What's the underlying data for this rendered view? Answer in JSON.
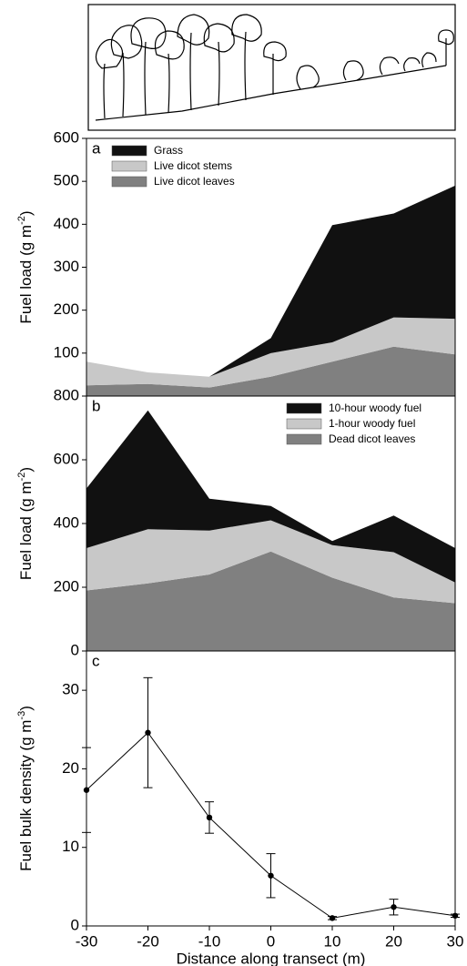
{
  "chart_data": [
    {
      "type": "stacked_area",
      "panel_label": "a",
      "ylabel": [
        "Fuel load (g m",
        "-2",
        ")"
      ],
      "x": [
        -30,
        -20,
        -10,
        0,
        10,
        20,
        30
      ],
      "xlim": [
        -30,
        30
      ],
      "ylim": [
        0,
        600
      ],
      "yticks": [
        100,
        200,
        300,
        400,
        500,
        600
      ],
      "legend": "upper left",
      "series": [
        {
          "name": "Grass",
          "color": "#111111",
          "values": [
            0,
            0,
            0,
            35,
            273,
            242,
            310
          ]
        },
        {
          "name": "Live dicot stems",
          "color": "#c8c8c8",
          "values": [
            55,
            27,
            25,
            55,
            45,
            68,
            83
          ]
        },
        {
          "name": "Live dicot leaves",
          "color": "#808080",
          "values": [
            25,
            28,
            20,
            45,
            80,
            115,
            97
          ]
        }
      ]
    },
    {
      "type": "stacked_area",
      "panel_label": "b",
      "ylabel": [
        "Fuel load (g m",
        "-2",
        ")"
      ],
      "x": [
        -30,
        -20,
        -10,
        0,
        10,
        20,
        30
      ],
      "xlim": [
        -30,
        30
      ],
      "ylim": [
        0,
        800
      ],
      "yticks": [
        0,
        200,
        400,
        600,
        800
      ],
      "legend": "upper right",
      "series": [
        {
          "name": "10-hour woody fuel",
          "color": "#111111",
          "values": [
            187,
            373,
            100,
            45,
            13,
            115,
            108
          ]
        },
        {
          "name": "1-hour woody fuel",
          "color": "#c8c8c8",
          "values": [
            133,
            170,
            138,
            98,
            102,
            142,
            65
          ]
        },
        {
          "name": "Dead dicot leaves",
          "color": "#808080",
          "values": [
            190,
            212,
            240,
            312,
            230,
            168,
            150
          ]
        }
      ]
    },
    {
      "type": "line",
      "panel_label": "c",
      "ylabel": [
        "Fuel bulk density (g m",
        "-3",
        ")"
      ],
      "xlabel": "Distance along transect (m)",
      "x": [
        -30,
        -20,
        -10,
        0,
        10,
        20,
        30
      ],
      "xlim": [
        -30,
        30
      ],
      "xticks": [
        -30,
        -20,
        -10,
        0,
        10,
        20,
        30
      ],
      "ylim": [
        0,
        35
      ],
      "yticks": [
        0,
        10,
        20,
        30
      ],
      "color": "#000000",
      "values": [
        17.3,
        24.6,
        13.8,
        6.4,
        1.0,
        2.4,
        1.3
      ],
      "errors": [
        5.4,
        7.0,
        2.0,
        2.8,
        0.2,
        1.0,
        0.2
      ]
    }
  ]
}
